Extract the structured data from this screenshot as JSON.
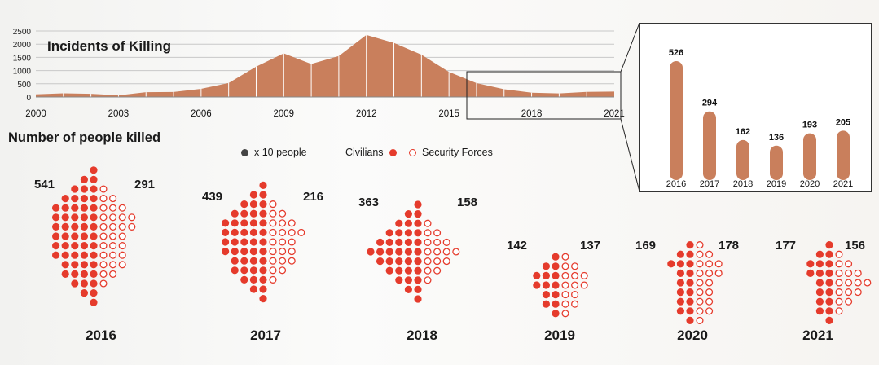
{
  "title": "Incidents of Killing",
  "section_title": "Number of people killed",
  "legend": {
    "scale": "x 10 people",
    "civilians": "Civilians",
    "security": "Security Forces"
  },
  "colors": {
    "area": "#c97f5c",
    "dot": "#e53b2c",
    "scale_dot": "#444444",
    "grid": "#c8c8c8"
  },
  "chart_data": [
    {
      "type": "area",
      "title": "Incidents of Killing",
      "x": [
        2000,
        2001,
        2002,
        2003,
        2004,
        2005,
        2006,
        2007,
        2008,
        2009,
        2010,
        2011,
        2012,
        2013,
        2014,
        2015,
        2016,
        2017,
        2018,
        2019,
        2020,
        2021
      ],
      "values": [
        100,
        140,
        120,
        60,
        180,
        190,
        310,
        530,
        1150,
        1650,
        1250,
        1550,
        2350,
        2050,
        1600,
        950,
        526,
        294,
        162,
        136,
        193,
        205
      ],
      "x_ticks": [
        "2000",
        "2003",
        "2006",
        "2009",
        "2012",
        "2015",
        "2018",
        "2021"
      ],
      "y_ticks": [
        "0",
        "500",
        "1000",
        "1500",
        "2000",
        "2500"
      ],
      "ylim": [
        0,
        2500
      ],
      "grid": true
    },
    {
      "type": "bar",
      "categories": [
        "2016",
        "2017",
        "2018",
        "2019",
        "2020",
        "2021"
      ],
      "values": [
        526,
        294,
        162,
        136,
        193,
        205
      ],
      "ylim": [
        0,
        560
      ]
    },
    {
      "type": "dot-matrix",
      "unit": "x 10 people",
      "groups": [
        {
          "year": "2016",
          "civilians": 541,
          "security_forces": 291
        },
        {
          "year": "2017",
          "civilians": 439,
          "security_forces": 216
        },
        {
          "year": "2018",
          "civilians": 363,
          "security_forces": 158
        },
        {
          "year": "2019",
          "civilians": 142,
          "security_forces": 137
        },
        {
          "year": "2020",
          "civilians": 169,
          "security_forces": 178
        },
        {
          "year": "2021",
          "civilians": 177,
          "security_forces": 156
        }
      ]
    }
  ]
}
